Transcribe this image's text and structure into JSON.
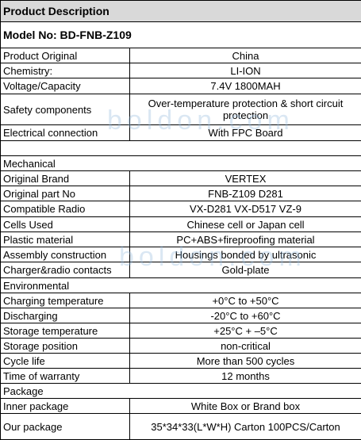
{
  "header": {
    "title": "Product Description",
    "model": "Model No: BD-FNB-Z109"
  },
  "watermark": "boldon.com",
  "table": {
    "rows": [
      {
        "label": "Product Original",
        "value": "China"
      },
      {
        "label": "Chemistry:",
        "value": "LI-ION"
      },
      {
        "label": "Voltage/Capacity",
        "value": "7.4V 1800MAH"
      },
      {
        "label": "Safety components",
        "value": "Over-temperature protection & short circuit protection"
      },
      {
        "label": "Electrical connection",
        "value": "With FPC Board"
      },
      {
        "heading": "Mechanical"
      },
      {
        "label": "Original Brand",
        "value": "VERTEX"
      },
      {
        "label": "Original part No",
        "value": "FNB-Z109 D281"
      },
      {
        "label": "Compatible Radio",
        "value": "VX-D281 VX-D517  VZ-9"
      },
      {
        "label": "Cells Used",
        "value": "Chinese cell or Japan cell"
      },
      {
        "label": "Plastic material",
        "value": "PC+ABS+fireproofing material"
      },
      {
        "label": "Assembly construction",
        "value": "Housings bonded by ultrasonic"
      },
      {
        "label": "Charger&radio contacts",
        "value": "Gold-plate"
      },
      {
        "heading": "Environmental"
      },
      {
        "label": "Charging temperature",
        "value": "+0°C to +50°C"
      },
      {
        "label": "Discharging",
        "value": "-20°C to +60°C"
      },
      {
        "label": "Storage temperature",
        "value": "+25°C + –5°C"
      },
      {
        "label": "Storage position",
        "value": "non-critical"
      },
      {
        "label": "Cycle life",
        "value": "More than 500 cycles"
      },
      {
        "label": "Time of warranty",
        "value": "12 months"
      },
      {
        "heading": "Package"
      },
      {
        "label": "Inner package",
        "value": "White Box or  Brand box"
      },
      {
        "label": "Our package",
        "value": "35*34*33(L*W*H) Carton  100PCS/Carton"
      }
    ]
  }
}
